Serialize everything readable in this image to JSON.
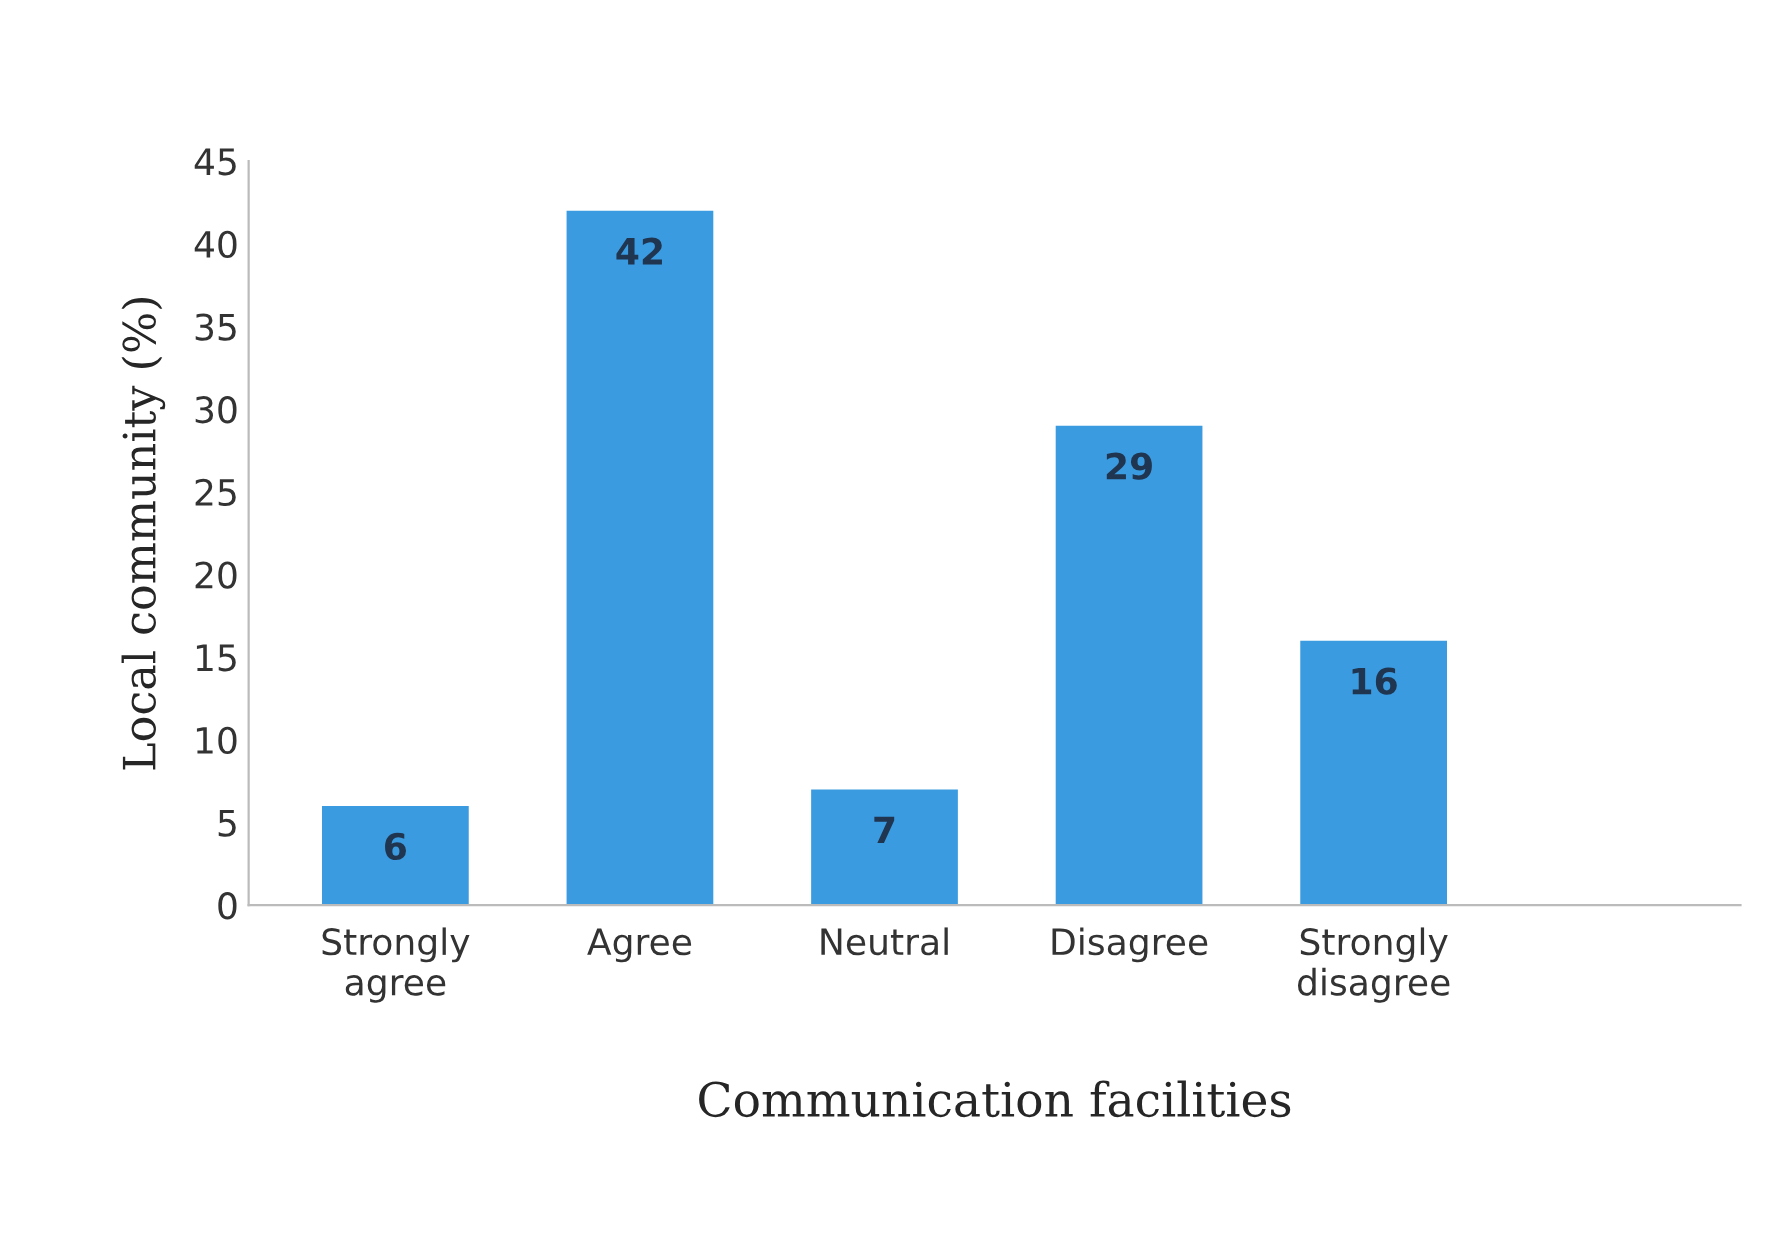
{
  "chart_data": {
    "type": "bar",
    "categories": [
      "Strongly\nagree",
      "Agree",
      "Neutral",
      "Disagree",
      "Strongly\ndisagree"
    ],
    "values": [
      6,
      42,
      7,
      29,
      16
    ],
    "color": "#3b9be0",
    "xlabel": "Communication facilities",
    "ylabel": "Local community (%)",
    "ylim": [
      0,
      45
    ],
    "yticks": [
      0,
      5,
      10,
      15,
      20,
      25,
      30,
      35,
      40,
      45
    ],
    "data_labels": true,
    "grid": false,
    "legend": false
  }
}
